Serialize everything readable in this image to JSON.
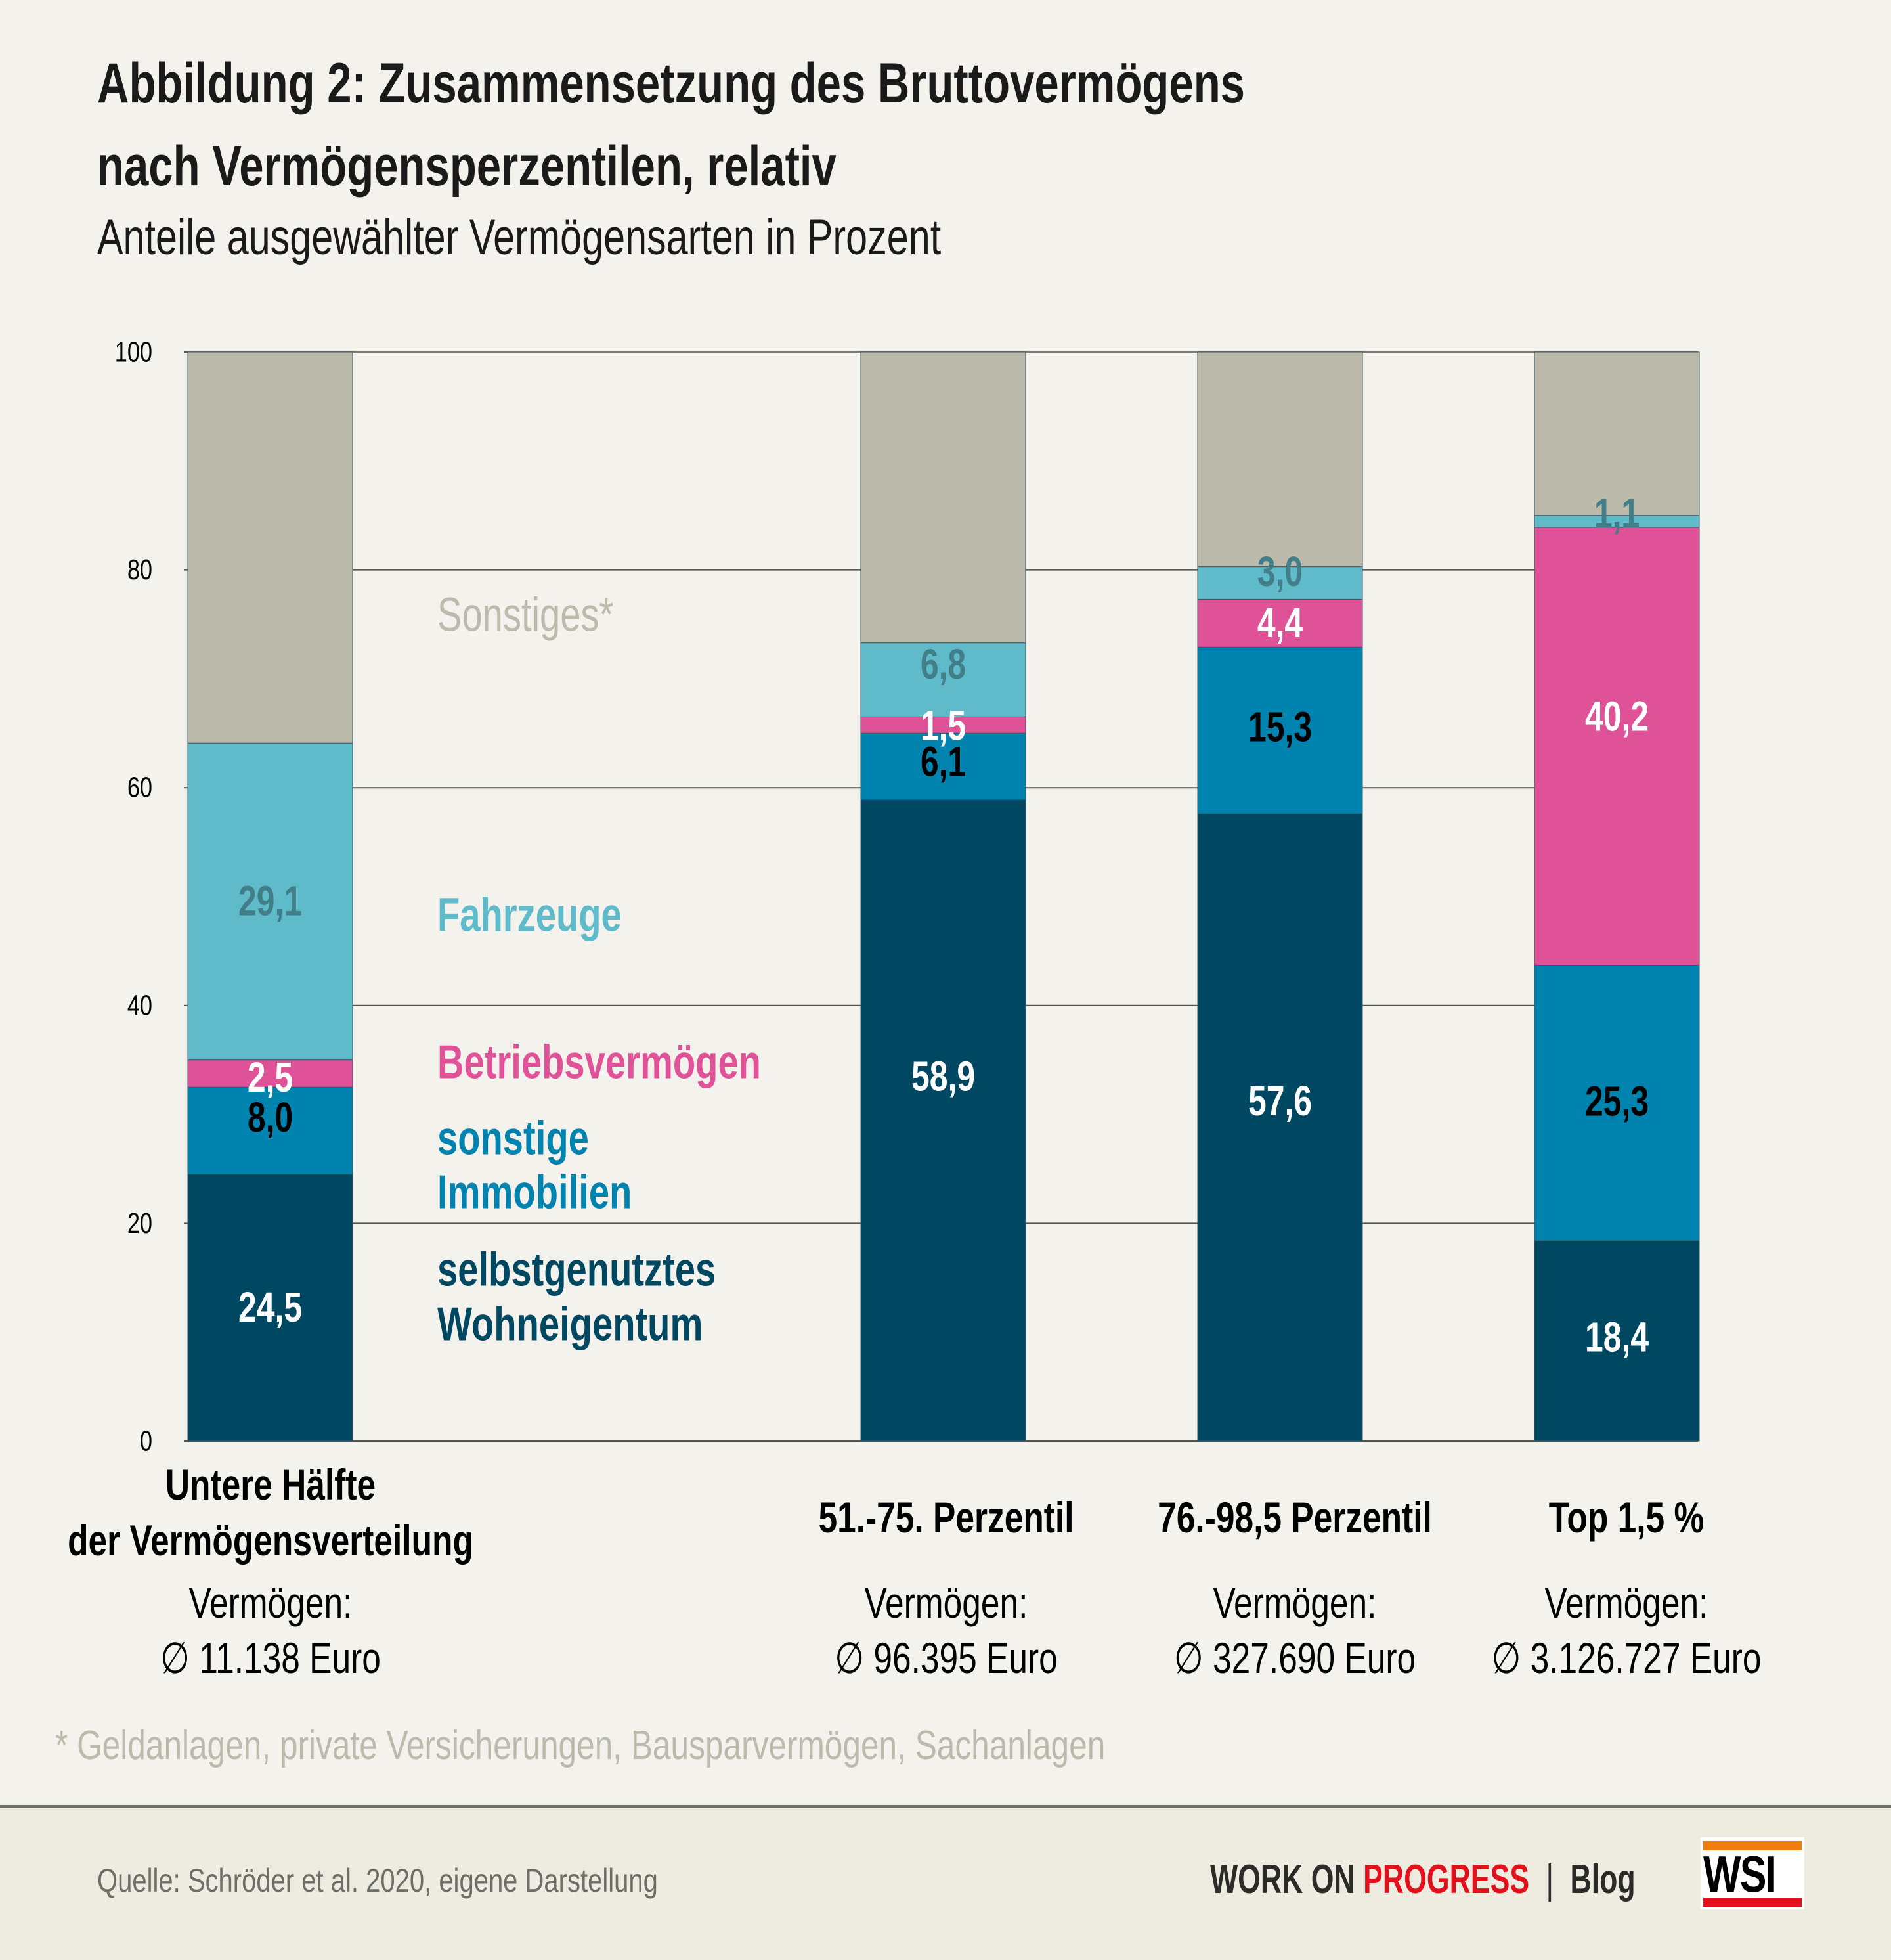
{
  "header": {
    "title_line1": "Abbildung 2: Zusammensetzung des Bruttovermögens",
    "title_line2": "nach Vermögensperzentilen, relativ",
    "subtitle": "Anteile ausgewählter Vermögensarten in Prozent"
  },
  "chart_data": {
    "type": "bar",
    "stacked": true,
    "title": "Abbildung 2: Zusammensetzung des Bruttovermögens nach Vermögensperzentilen, relativ",
    "subtitle": "Anteile ausgewählter Vermögensarten in Prozent",
    "xlabel": "",
    "ylabel": "",
    "ylim": [
      0,
      100
    ],
    "yticks": [
      "0",
      "20",
      "40",
      "60",
      "80",
      "100"
    ],
    "grid": true,
    "categories": [
      "Untere Hälfte der Vermögensverteilung",
      "51.-75. Perzentil",
      "76.-98,5 Perzentil",
      "Top 1,5 %"
    ],
    "category_label_lines": [
      [
        "Untere Hälfte",
        "der Vermögensverteilung"
      ],
      [
        "51.-75. Perzentil"
      ],
      [
        "76.-98,5 Perzentil"
      ],
      [
        "Top 1,5 %"
      ]
    ],
    "wealth_caption": "Vermögen:",
    "wealth_values": [
      "∅ 11.138 Euro",
      "∅ 96.395 Euro",
      "∅ 327.690 Euro",
      "∅ 3.126.727 Euro"
    ],
    "series": [
      {
        "name": "selbstgenutztes Wohneigentum",
        "legend_lines": [
          "selbstgenutztes",
          "Wohneigentum"
        ],
        "color": "#004862",
        "label_color": "#ffffff",
        "values": [
          24.5,
          58.9,
          57.6,
          18.4
        ],
        "labels": [
          "24,5",
          "58,9",
          "57,6",
          "18,4"
        ]
      },
      {
        "name": "sonstige Immobilien",
        "legend_lines": [
          "sonstige",
          "Immobilien"
        ],
        "color": "#0083ae",
        "label_color": "#000000",
        "values": [
          8.0,
          6.1,
          15.3,
          25.3
        ],
        "labels": [
          "8,0",
          "6,1",
          "15,3",
          "25,3"
        ]
      },
      {
        "name": "Betriebsvermögen",
        "legend_lines": [
          "Betriebsvermögen"
        ],
        "color": "#df5298",
        "label_color": "#ffffff",
        "values": [
          2.5,
          1.5,
          4.4,
          40.2
        ],
        "labels": [
          "2,5",
          "1,5",
          "4,4",
          "40,2"
        ]
      },
      {
        "name": "Fahrzeuge",
        "legend_lines": [
          "Fahrzeuge"
        ],
        "color": "#5fbaca",
        "label_color": "#417e88",
        "values": [
          29.1,
          6.8,
          3.0,
          1.1
        ],
        "labels": [
          "29,1",
          "6,8",
          "3,0",
          "1,1"
        ]
      },
      {
        "name": "Sonstiges*",
        "legend_lines": [
          "Sonstiges*"
        ],
        "color": "#bcbaab",
        "label_color": "#bcbaab",
        "values": [
          35.9,
          26.7,
          19.7,
          15.0
        ],
        "labels": [
          "",
          "",
          "",
          ""
        ]
      }
    ],
    "legend_placement": "inline-between-bars",
    "footnote": "*  Geldanlagen, private Versicherungen, Bausparvermögen, Sachanlagen"
  },
  "footer": {
    "source": "Quelle: Schröder et al. 2020, eigene Darstellung",
    "brand_part1": "WORK ON",
    "brand_part2": "PROGRESS",
    "brand_sep": "|",
    "brand_part3": "Blog",
    "logo_text": "WSI"
  }
}
